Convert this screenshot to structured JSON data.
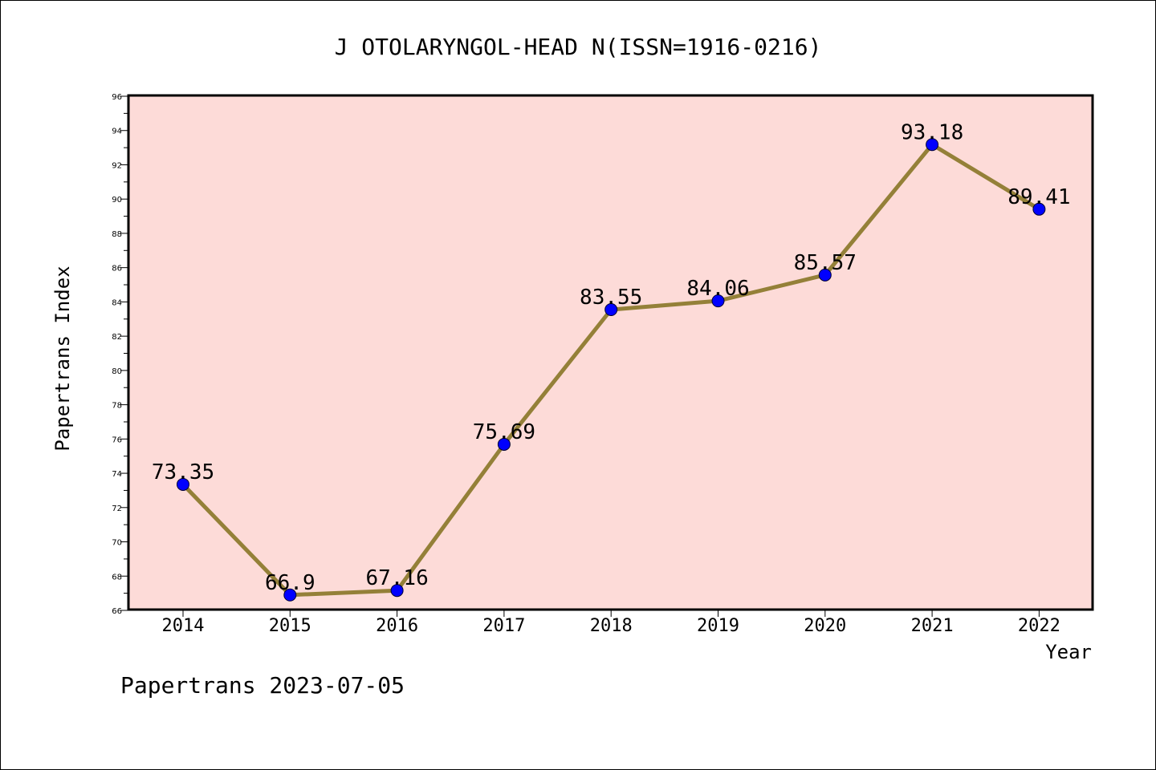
{
  "chart_data": {
    "type": "line",
    "title": "J OTOLARYNGOL-HEAD N(ISSN=1916-0216)",
    "xlabel": "Year",
    "ylabel": "Papertrans Index",
    "categories": [
      "2014",
      "2015",
      "2016",
      "2017",
      "2018",
      "2019",
      "2020",
      "2021",
      "2022"
    ],
    "series": [
      {
        "values": [
          73.35,
          66.9,
          67.16,
          75.69,
          83.55,
          84.06,
          85.57,
          93.18,
          89.41
        ],
        "labels": [
          "73.35",
          "66.9",
          "67.16",
          "75.69",
          "83.55",
          "84.06",
          "85.57",
          "93.18",
          "89.41"
        ]
      }
    ],
    "ylim": [
      66,
      96
    ],
    "yticks": [
      "66",
      "68",
      "70",
      "72",
      "74",
      "76",
      "78",
      "80",
      "82",
      "84",
      "86",
      "88",
      "90",
      "92",
      "94",
      "96"
    ],
    "grid": false,
    "colors": {
      "plot_background": "#fddbd8",
      "line": "#948038",
      "marker": "#0000ff",
      "axes": "#000000"
    }
  },
  "footer": "Papertrans 2023-07-05"
}
